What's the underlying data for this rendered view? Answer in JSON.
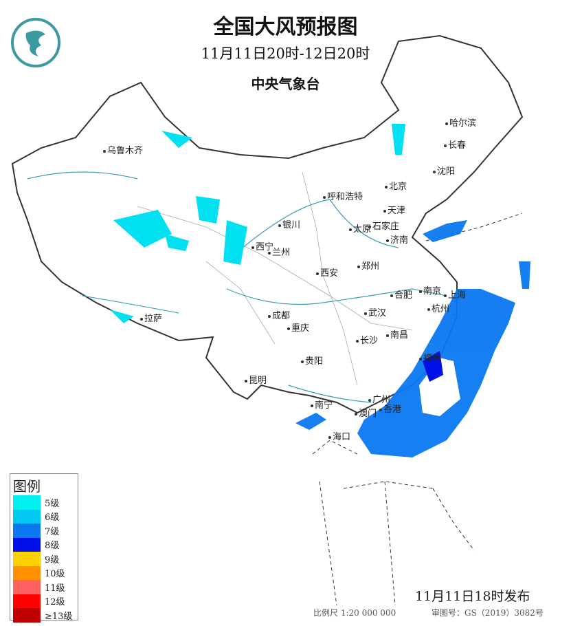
{
  "header": {
    "title": "全国大风预报图",
    "period": "11月11日20时-12日20时",
    "agency": "中央气象台"
  },
  "logo": {
    "name": "cma-logo"
  },
  "cities": [
    "乌鲁木齐",
    "哈尔滨",
    "长春",
    "沈阳",
    "北京",
    "天津",
    "呼和浩特",
    "银川",
    "太原",
    "石家庄",
    "济南",
    "西宁",
    "兰州",
    "西安",
    "郑州",
    "南京",
    "上海",
    "合肥",
    "杭州",
    "武汉",
    "成都",
    "重庆",
    "长沙",
    "南昌",
    "拉萨",
    "贵阳",
    "福州",
    "昆明",
    "南宁",
    "广州",
    "香港",
    "澳门",
    "海口"
  ],
  "legend": {
    "title": "图例",
    "items": [
      {
        "label": "5级",
        "color": "#00f0f0"
      },
      {
        "label": "6级",
        "color": "#00c8f0"
      },
      {
        "label": "7级",
        "color": "#0a78f0"
      },
      {
        "label": "8级",
        "color": "#0010e8"
      },
      {
        "label": "9级",
        "color": "#ffd000"
      },
      {
        "label": "10级",
        "color": "#ff9000"
      },
      {
        "label": "11级",
        "color": "#ff6060"
      },
      {
        "label": "12级",
        "color": "#ff0000"
      },
      {
        "label": "≥13级",
        "color": "#c00000"
      }
    ]
  },
  "footer": {
    "issued": "11月11日18时发布",
    "scale": "比例尺 1:20 000 000",
    "review": "审图号：GS（2019）3082号"
  }
}
